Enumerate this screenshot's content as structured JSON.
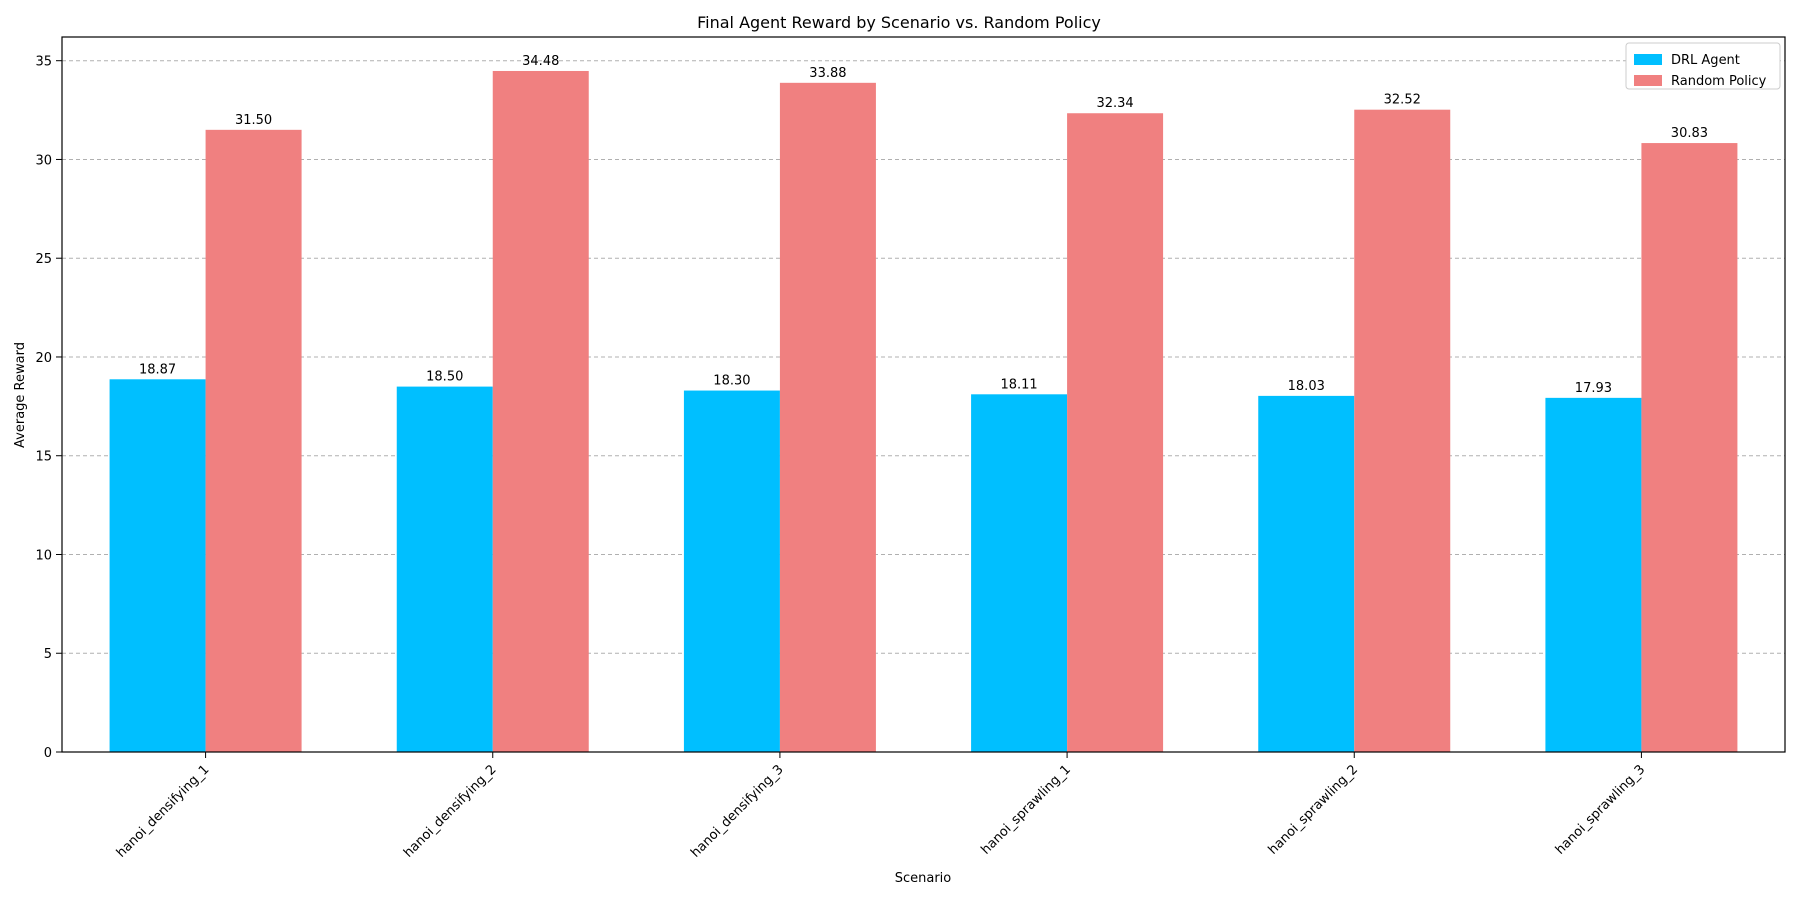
{
  "chart_data": {
    "type": "bar",
    "title": "Final Agent Reward by Scenario vs. Random Policy",
    "xlabel": "Scenario",
    "ylabel": "Average Reward",
    "ylim": [
      0,
      36.2
    ],
    "yticks": [
      0,
      5,
      10,
      15,
      20,
      25,
      30,
      35
    ],
    "grid": true,
    "legend_position": "top-right",
    "categories": [
      "hanoi_densifying_1",
      "hanoi_densifying_2",
      "hanoi_densifying_3",
      "hanoi_sprawling_1",
      "hanoi_sprawling_2",
      "hanoi_sprawling_3"
    ],
    "series": [
      {
        "name": "DRL Agent",
        "color": "#00bfff",
        "values": [
          18.87,
          18.5,
          18.3,
          18.11,
          18.03,
          17.93
        ],
        "labels": [
          "18.87",
          "18.50",
          "18.30",
          "18.11",
          "18.03",
          "17.93"
        ]
      },
      {
        "name": "Random Policy",
        "color": "#f08080",
        "values": [
          31.5,
          34.48,
          33.88,
          32.34,
          32.52,
          30.83
        ],
        "labels": [
          "31.50",
          "34.48",
          "33.88",
          "32.34",
          "32.52",
          "30.83"
        ]
      }
    ]
  }
}
